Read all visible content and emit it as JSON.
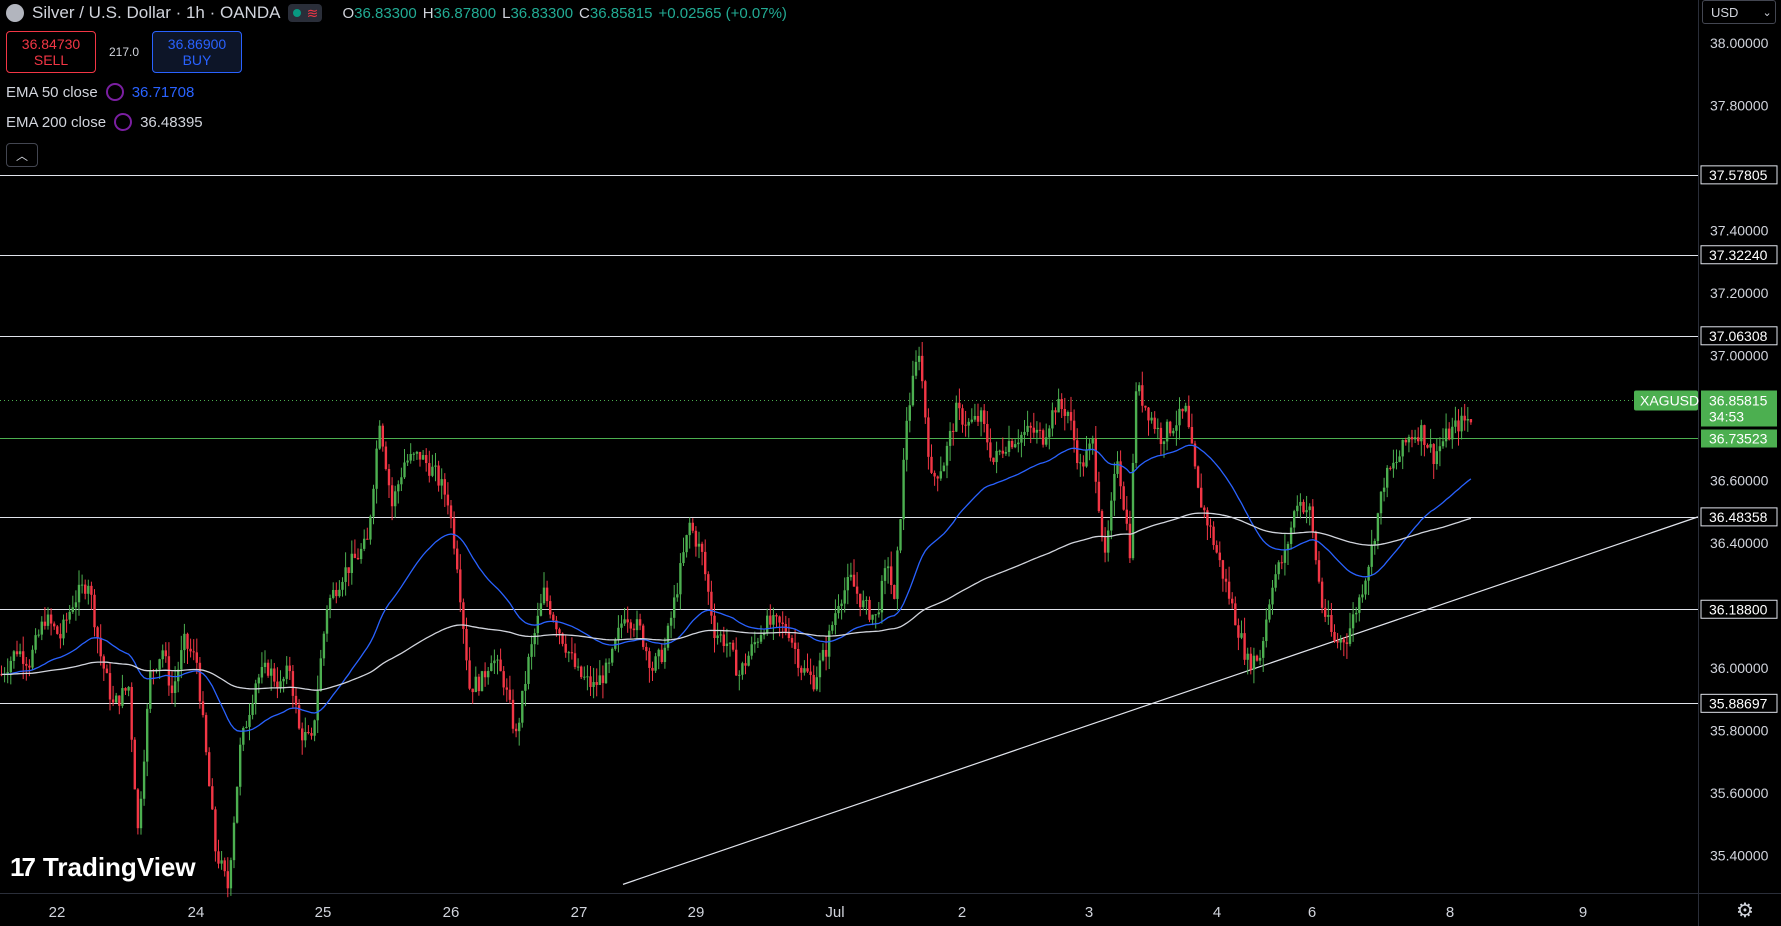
{
  "header": {
    "title": "Silver / U.S. Dollar · 1h · OANDA",
    "ohlc": [
      {
        "k": "O",
        "v": "36.83300"
      },
      {
        "k": "H",
        "v": "36.87800"
      },
      {
        "k": "L",
        "v": "36.83300"
      },
      {
        "k": "C",
        "v": "36.85815"
      },
      {
        "k": "",
        "v": "+0.02565 (+0.07%)"
      }
    ]
  },
  "trade": {
    "sell_price": "36.84730",
    "sell_label": "SELL",
    "spread": "217.0",
    "buy_price": "36.86900",
    "buy_label": "BUY"
  },
  "indicators": [
    {
      "name": "EMA 50 close",
      "value": "36.71708",
      "color": "#2962ff"
    },
    {
      "name": "EMA 200 close",
      "value": "36.48395",
      "color": "#d1d4dc"
    }
  ],
  "currency": "USD",
  "branding": "TradingView",
  "colors": {
    "up": "#26a69a",
    "up_bright": "#4caf50",
    "down": "#f23645",
    "ema50": "#2962ff",
    "ema200": "#d1d4dc",
    "price": "#4caf50"
  },
  "chart_data": {
    "type": "candlestick",
    "symbol": "XAGUSD",
    "interval": "1h",
    "ylim": [
      35.28,
      38.1
    ],
    "y_ticks": [
      "38.00000",
      "37.80000",
      "37.40000",
      "37.20000",
      "37.00000",
      "36.60000",
      "36.40000",
      "36.00000",
      "35.80000",
      "35.60000",
      "35.40000"
    ],
    "x_ticks": [
      "22",
      "24",
      "25",
      "26",
      "27",
      "29",
      "Jul",
      "2",
      "3",
      "4",
      "6",
      "8",
      "9"
    ],
    "levels": [
      "37.57805",
      "37.32240",
      "37.06308",
      "36.48358",
      "36.18800",
      "35.88697"
    ],
    "current_price": {
      "label": "XAGUSD",
      "value": "36.85815",
      "countdown": "34:53"
    },
    "ema_level": "36.73523",
    "trendline": {
      "from": {
        "x": "29",
        "y": 35.41
      },
      "to": {
        "x": "9",
        "y": 36.49
      }
    },
    "path": [
      [
        0,
        35.98
      ],
      [
        5,
        36.06
      ],
      [
        9,
        36.02
      ],
      [
        14,
        36.16
      ],
      [
        19,
        36.1
      ],
      [
        23,
        36.21
      ],
      [
        28,
        36.28
      ],
      [
        32,
        36.04
      ],
      [
        36,
        35.88
      ],
      [
        41,
        35.94
      ],
      [
        44,
        35.48
      ],
      [
        48,
        35.98
      ],
      [
        52,
        36.06
      ],
      [
        55,
        35.92
      ],
      [
        59,
        36.08
      ],
      [
        63,
        36.02
      ],
      [
        69,
        35.42
      ],
      [
        73,
        35.3
      ],
      [
        77,
        35.74
      ],
      [
        82,
        35.96
      ],
      [
        86,
        36.0
      ],
      [
        90,
        35.94
      ],
      [
        93,
        36.0
      ],
      [
        96,
        35.8
      ],
      [
        100,
        35.76
      ],
      [
        105,
        36.2
      ],
      [
        110,
        36.3
      ],
      [
        115,
        36.36
      ],
      [
        118,
        36.4
      ],
      [
        122,
        36.8
      ],
      [
        126,
        36.52
      ],
      [
        130,
        36.66
      ],
      [
        135,
        36.68
      ],
      [
        140,
        36.62
      ],
      [
        144,
        36.54
      ],
      [
        147,
        36.34
      ],
      [
        151,
        35.94
      ],
      [
        155,
        35.96
      ],
      [
        158,
        36.04
      ],
      [
        162,
        35.96
      ],
      [
        166,
        35.78
      ],
      [
        170,
        36.02
      ],
      [
        175,
        36.24
      ],
      [
        180,
        36.12
      ],
      [
        186,
        35.98
      ],
      [
        191,
        35.94
      ],
      [
        196,
        36.0
      ],
      [
        201,
        36.18
      ],
      [
        206,
        36.12
      ],
      [
        210,
        36.0
      ],
      [
        214,
        36.06
      ],
      [
        218,
        36.26
      ],
      [
        222,
        36.46
      ],
      [
        226,
        36.36
      ],
      [
        230,
        36.12
      ],
      [
        234,
        36.08
      ],
      [
        238,
        35.98
      ],
      [
        242,
        36.06
      ],
      [
        246,
        36.14
      ],
      [
        250,
        36.14
      ],
      [
        254,
        36.12
      ],
      [
        258,
        36.0
      ],
      [
        262,
        35.96
      ],
      [
        266,
        36.06
      ],
      [
        270,
        36.22
      ],
      [
        274,
        36.28
      ],
      [
        278,
        36.2
      ],
      [
        282,
        36.16
      ],
      [
        286,
        36.34
      ],
      [
        288,
        36.2
      ],
      [
        292,
        36.8
      ],
      [
        296,
        37.02
      ],
      [
        300,
        36.6
      ],
      [
        304,
        36.66
      ],
      [
        308,
        36.82
      ],
      [
        312,
        36.78
      ],
      [
        316,
        36.8
      ],
      [
        320,
        36.66
      ],
      [
        324,
        36.72
      ],
      [
        328,
        36.74
      ],
      [
        332,
        36.76
      ],
      [
        336,
        36.74
      ],
      [
        340,
        36.84
      ],
      [
        344,
        36.82
      ],
      [
        348,
        36.64
      ],
      [
        352,
        36.72
      ],
      [
        356,
        36.34
      ],
      [
        360,
        36.68
      ],
      [
        364,
        36.38
      ],
      [
        366,
        36.9
      ],
      [
        370,
        36.82
      ],
      [
        374,
        36.74
      ],
      [
        378,
        36.78
      ],
      [
        382,
        36.82
      ],
      [
        386,
        36.56
      ],
      [
        390,
        36.44
      ],
      [
        394,
        36.3
      ],
      [
        398,
        36.16
      ],
      [
        402,
        36.02
      ],
      [
        406,
        36.04
      ],
      [
        410,
        36.28
      ],
      [
        414,
        36.36
      ],
      [
        418,
        36.54
      ],
      [
        422,
        36.5
      ],
      [
        426,
        36.2
      ],
      [
        430,
        36.08
      ],
      [
        434,
        36.1
      ],
      [
        438,
        36.22
      ],
      [
        442,
        36.38
      ],
      [
        446,
        36.6
      ],
      [
        450,
        36.66
      ],
      [
        454,
        36.74
      ],
      [
        458,
        36.76
      ],
      [
        462,
        36.68
      ],
      [
        466,
        36.74
      ],
      [
        470,
        36.78
      ],
      [
        474,
        36.8
      ]
    ]
  }
}
